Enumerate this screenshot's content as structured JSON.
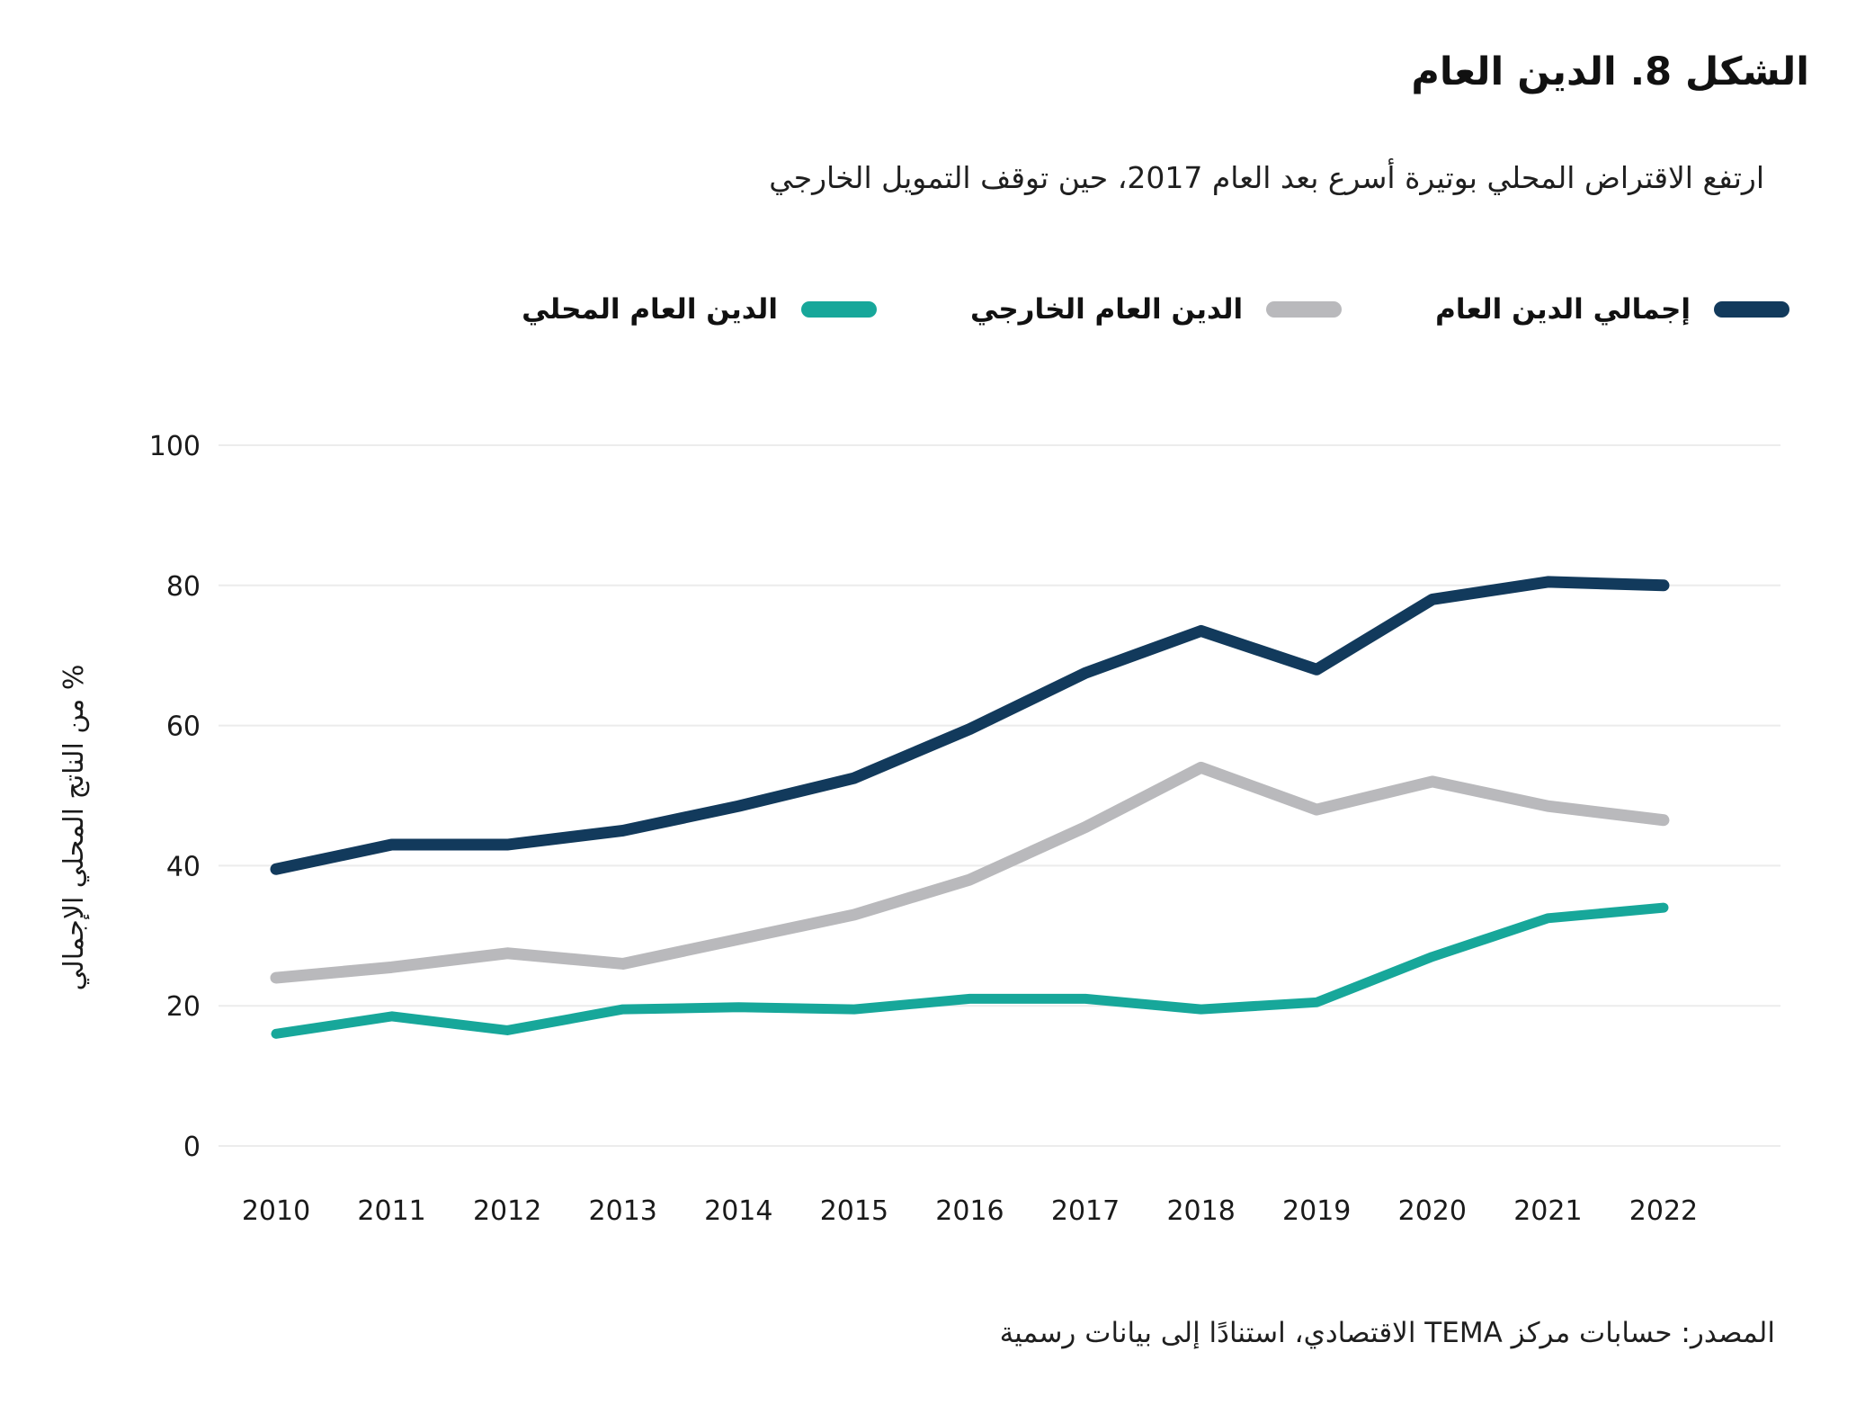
{
  "header": {
    "title": "الشكل 8. الدين العام",
    "subtitle": "ارتفع الاقتراض المحلي بوتيرة أسرع بعد العام 2017، حين توقف التمويل الخارجي"
  },
  "footer": {
    "source": "المصدر: حسابات مركز TEMA الاقتصادي، استنادًا إلى بيانات رسمية"
  },
  "colors": {
    "total_debt": "#123a5c",
    "external_debt": "#b9b9bc",
    "domestic_debt": "#17a79a",
    "gridline": "#ececec",
    "text": "#1a1a1a"
  },
  "chart_data": {
    "type": "line",
    "title": "الشكل 8. الدين العام",
    "subtitle": "ارتفع الاقتراض المحلي بوتيرة أسرع بعد العام 2017، حين توقف التمويل الخارجي",
    "x": [
      2010,
      2011,
      2012,
      2013,
      2014,
      2015,
      2016,
      2017,
      2018,
      2019,
      2020,
      2021,
      2022
    ],
    "series": [
      {
        "name": "إجمالي الدين العام",
        "color": "#123a5c",
        "stroke_width": 13,
        "values": [
          39.5,
          43,
          43,
          45,
          48.5,
          52.5,
          59.5,
          67.5,
          73.5,
          68,
          78,
          80.5,
          80
        ]
      },
      {
        "name": "الدين العام الخارجي",
        "color": "#b9b9bc",
        "stroke_width": 13,
        "values": [
          24,
          25.5,
          27.5,
          26,
          29.5,
          33,
          38,
          45.5,
          54,
          48,
          52,
          48.5,
          46.5
        ]
      },
      {
        "name": "الدين العام المحلي",
        "color": "#17a79a",
        "stroke_width": 11,
        "values": [
          16,
          18.5,
          16.5,
          19.5,
          19.8,
          19.5,
          21,
          21,
          19.5,
          20.5,
          27,
          32.5,
          34
        ]
      }
    ],
    "ylabel": "% من الناتج المحلي الإجمالي",
    "xlabel": "",
    "yticks": [
      0,
      20,
      40,
      60,
      80,
      100
    ],
    "ylim": [
      0,
      100
    ],
    "grid": true,
    "legend_position": "top"
  }
}
